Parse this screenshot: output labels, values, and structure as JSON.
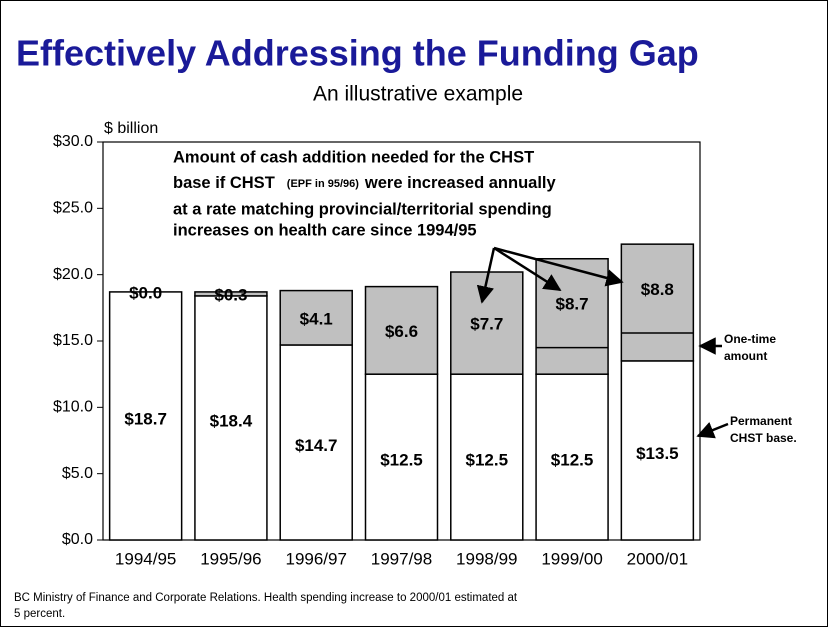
{
  "chart_data": {
    "type": "stacked_bar",
    "title": "Effectively Addressing the Funding Gap",
    "subtitle": "An illustrative example",
    "y_label": "$ billion",
    "categories": [
      "1994/95",
      "1995/96",
      "1996/97",
      "1997/98",
      "1998/99",
      "1999/00",
      "2000/01"
    ],
    "series": [
      {
        "name": "Permanent CHST base.",
        "color": "#ffffff",
        "values": [
          18.7,
          18.4,
          14.7,
          12.5,
          12.5,
          12.5,
          13.5
        ],
        "value_labels": [
          "$18.7",
          "$18.4",
          "$14.7",
          "$12.5",
          "$12.5",
          "$12.5",
          "$13.5"
        ]
      },
      {
        "color": "#c0c0c0",
        "values": [
          0.0,
          0.3,
          4.1,
          6.6,
          7.7,
          8.7,
          8.8
        ],
        "value_labels": [
          "$0.0",
          "$0.3",
          "$4.1",
          "$6.6",
          "$7.7",
          "$8.7",
          "$8.8"
        ]
      },
      {
        "name": "One-time amount",
        "color": "#c0c0c0",
        "values": [
          null,
          null,
          null,
          null,
          null,
          2.0,
          2.1
        ]
      }
    ],
    "annotation": [
      "Amount of cash addition needed for the CHST",
      "base if CHST",
      "(EPF in 95/96)",
      "were increased annually",
      "at a rate matching provincial/territorial spending",
      "increases on health care since 1994/95"
    ],
    "footnote": [
      "BC Ministry of Finance and Corporate Relations.  Health spending increase to 2000/01 estimated at",
      "5 percent."
    ],
    "ylim": [
      0,
      30
    ],
    "yticks": [
      {
        "value": 0,
        "label": "$0.0"
      },
      {
        "value": 5,
        "label": "$5.0"
      },
      {
        "value": 10,
        "label": "$10.0"
      },
      {
        "value": 15,
        "label": "$15.0"
      },
      {
        "value": 20,
        "label": "$20.0"
      },
      {
        "value": 25,
        "label": "$25.0"
      },
      {
        "value": 30,
        "label": "$30.0"
      }
    ],
    "grid": false
  }
}
